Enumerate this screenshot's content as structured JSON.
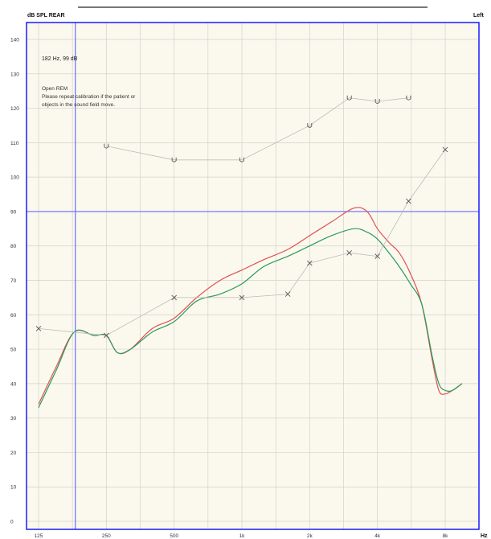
{
  "header": {
    "y_unit_label": "dB SPL REAR",
    "ear_label": "Left",
    "x_unit_label": "Hz"
  },
  "annotations": {
    "cursor_readout": "182 Hz, 99 dB",
    "note_line1": "Open REM",
    "note_line2": "Please repeat calibration if the patient or",
    "note_line3": "objects in the sound field move."
  },
  "colors": {
    "background": "#fbf9ee",
    "grid": "#d2d2cc",
    "frame": "#1a1aff",
    "reference_line": "#6a6aff",
    "red_curve": "#e05050",
    "green_curve": "#2a9a5a",
    "symbol_line": "#bbbbbb",
    "symbols": "#555555"
  },
  "chart_data": {
    "type": "line",
    "title": "",
    "xlabel": "Hz",
    "ylabel": "dB SPL REAR",
    "x_scale": "log",
    "xlim": [
      125,
      8000
    ],
    "ylim": [
      0,
      145
    ],
    "x_ticks": [
      {
        "value": 125,
        "label": "125"
      },
      {
        "value": 250,
        "label": "250"
      },
      {
        "value": 500,
        "label": "500"
      },
      {
        "value": 1000,
        "label": "1k"
      },
      {
        "value": 2000,
        "label": "2k"
      },
      {
        "value": 4000,
        "label": "4k"
      },
      {
        "value": 8000,
        "label": "8k"
      }
    ],
    "y_ticks": [
      0,
      10,
      20,
      30,
      40,
      50,
      60,
      70,
      80,
      90,
      100,
      110,
      120,
      130,
      140
    ],
    "grid": true,
    "reference_lines": {
      "vertical_hz": 182,
      "horizontal_db": 90
    },
    "series": [
      {
        "kind": "curve",
        "color": "#e05050",
        "x": [
          125,
          150,
          180,
          220,
          250,
          280,
          320,
          400,
          500,
          630,
          800,
          1000,
          1250,
          1600,
          2000,
          2500,
          3150,
          3600,
          4000,
          4500,
          5000,
          5600,
          6300,
          7000,
          7500,
          8000,
          8600,
          9500
        ],
        "y": [
          34,
          45,
          55,
          54,
          54,
          49,
          50,
          56,
          59,
          65,
          70,
          73,
          76,
          79,
          83,
          87,
          91,
          90,
          85,
          81,
          78,
          72,
          63,
          47,
          38,
          37,
          38,
          40
        ]
      },
      {
        "kind": "curve",
        "color": "#2a9a5a",
        "x": [
          125,
          150,
          180,
          220,
          250,
          280,
          320,
          400,
          500,
          630,
          800,
          1000,
          1250,
          1600,
          2000,
          2500,
          3150,
          3600,
          4000,
          4500,
          5000,
          5600,
          6300,
          7000,
          7500,
          8000,
          8600,
          9500
        ],
        "y": [
          33,
          44,
          55,
          54,
          54,
          49,
          50,
          55,
          58,
          64,
          66,
          69,
          74,
          77,
          80,
          83,
          85,
          84,
          82,
          78,
          74,
          69,
          63,
          48,
          40,
          38,
          38,
          40
        ]
      },
      {
        "kind": "markers",
        "marker": "x",
        "x": [
          125,
          250,
          500,
          1000,
          1600,
          2000,
          3000,
          4000,
          5500,
          8000
        ],
        "y": [
          56,
          54,
          65,
          65,
          66,
          75,
          78,
          77,
          93,
          108
        ]
      },
      {
        "kind": "markers",
        "marker": "U",
        "x": [
          250,
          500,
          1000,
          2000,
          3000,
          4000,
          5500
        ],
        "y": [
          109,
          105,
          105,
          115,
          123,
          122,
          123
        ]
      }
    ]
  }
}
